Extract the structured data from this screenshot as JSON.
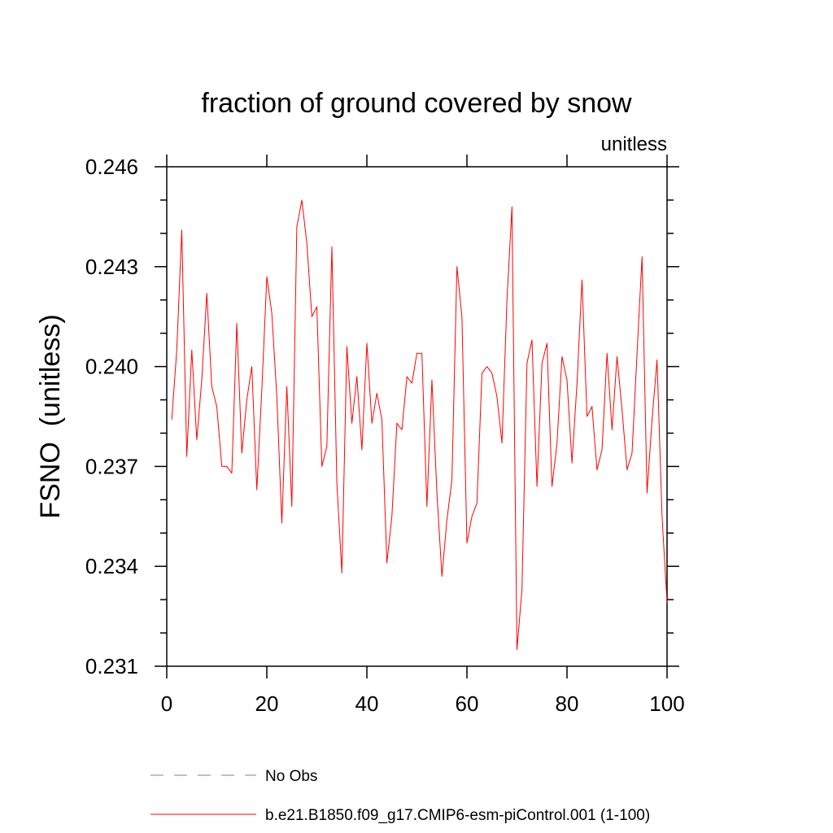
{
  "chart_data": {
    "type": "line",
    "title": "fraction of ground covered by snow",
    "units_label": "unitless",
    "ylabel": "FSNO  (unitless)",
    "xlabel": "",
    "xlim": [
      0,
      100
    ],
    "ylim": [
      0.231,
      0.246
    ],
    "x_ticks": [
      0,
      20,
      40,
      60,
      80,
      100
    ],
    "x_tick_labels": [
      "0",
      "20",
      "40",
      "60",
      "80",
      "100"
    ],
    "y_ticks": [
      0.231,
      0.234,
      0.237,
      0.24,
      0.243,
      0.246
    ],
    "y_tick_labels": [
      "0.231",
      "0.234",
      "0.237",
      "0.240",
      "0.243",
      "0.246"
    ],
    "grid": false,
    "legend_position": "bottom",
    "legend": [
      {
        "label": "No Obs",
        "color": "#7b78c8",
        "style": "dashed"
      },
      {
        "label": "b.e21.B1850.f09_g17.CMIP6-esm-piControl.001 (1-100)",
        "color": "#ff0000",
        "style": "solid"
      }
    ],
    "series": [
      {
        "name": "b.e21.B1850.f09_g17.CMIP6-esm-piControl.001 (1-100)",
        "color": "#ff0000",
        "x": [
          1,
          2,
          3,
          4,
          5,
          6,
          7,
          8,
          9,
          10,
          11,
          12,
          13,
          14,
          15,
          16,
          17,
          18,
          19,
          20,
          21,
          22,
          23,
          24,
          25,
          26,
          27,
          28,
          29,
          30,
          31,
          32,
          33,
          34,
          35,
          36,
          37,
          38,
          39,
          40,
          41,
          42,
          43,
          44,
          45,
          46,
          47,
          48,
          49,
          50,
          51,
          52,
          53,
          54,
          55,
          56,
          57,
          58,
          59,
          60,
          61,
          62,
          63,
          64,
          65,
          66,
          67,
          68,
          69,
          70,
          71,
          72,
          73,
          74,
          75,
          76,
          77,
          78,
          79,
          80,
          81,
          82,
          83,
          84,
          85,
          86,
          87,
          88,
          89,
          90,
          91,
          92,
          93,
          94,
          95,
          96,
          97,
          98,
          99,
          100
        ],
        "values": [
          0.2384,
          0.2405,
          0.2441,
          0.2373,
          0.2405,
          0.2378,
          0.2396,
          0.2422,
          0.2394,
          0.2388,
          0.237,
          0.237,
          0.2368,
          0.2413,
          0.2374,
          0.239,
          0.24,
          0.2363,
          0.2393,
          0.2427,
          0.2416,
          0.2391,
          0.2353,
          0.2394,
          0.2358,
          0.2442,
          0.245,
          0.2437,
          0.2415,
          0.2418,
          0.237,
          0.2376,
          0.2436,
          0.2365,
          0.2338,
          0.2406,
          0.2383,
          0.2397,
          0.2375,
          0.2407,
          0.2383,
          0.2392,
          0.2384,
          0.2341,
          0.2355,
          0.2383,
          0.2381,
          0.2397,
          0.2395,
          0.2404,
          0.2404,
          0.2358,
          0.2396,
          0.2362,
          0.2337,
          0.2354,
          0.2366,
          0.243,
          0.2415,
          0.2347,
          0.2355,
          0.2359,
          0.2398,
          0.24,
          0.2398,
          0.2391,
          0.2377,
          0.242,
          0.2448,
          0.2315,
          0.2333,
          0.2401,
          0.2408,
          0.2364,
          0.2401,
          0.2407,
          0.2364,
          0.2377,
          0.2403,
          0.2396,
          0.2371,
          0.2395,
          0.2426,
          0.2385,
          0.2388,
          0.2369,
          0.2375,
          0.2404,
          0.2381,
          0.2403,
          0.2387,
          0.2369,
          0.2374,
          0.2404,
          0.2433,
          0.2362,
          0.2384,
          0.2402,
          0.2355,
          0.2329
        ]
      }
    ]
  }
}
